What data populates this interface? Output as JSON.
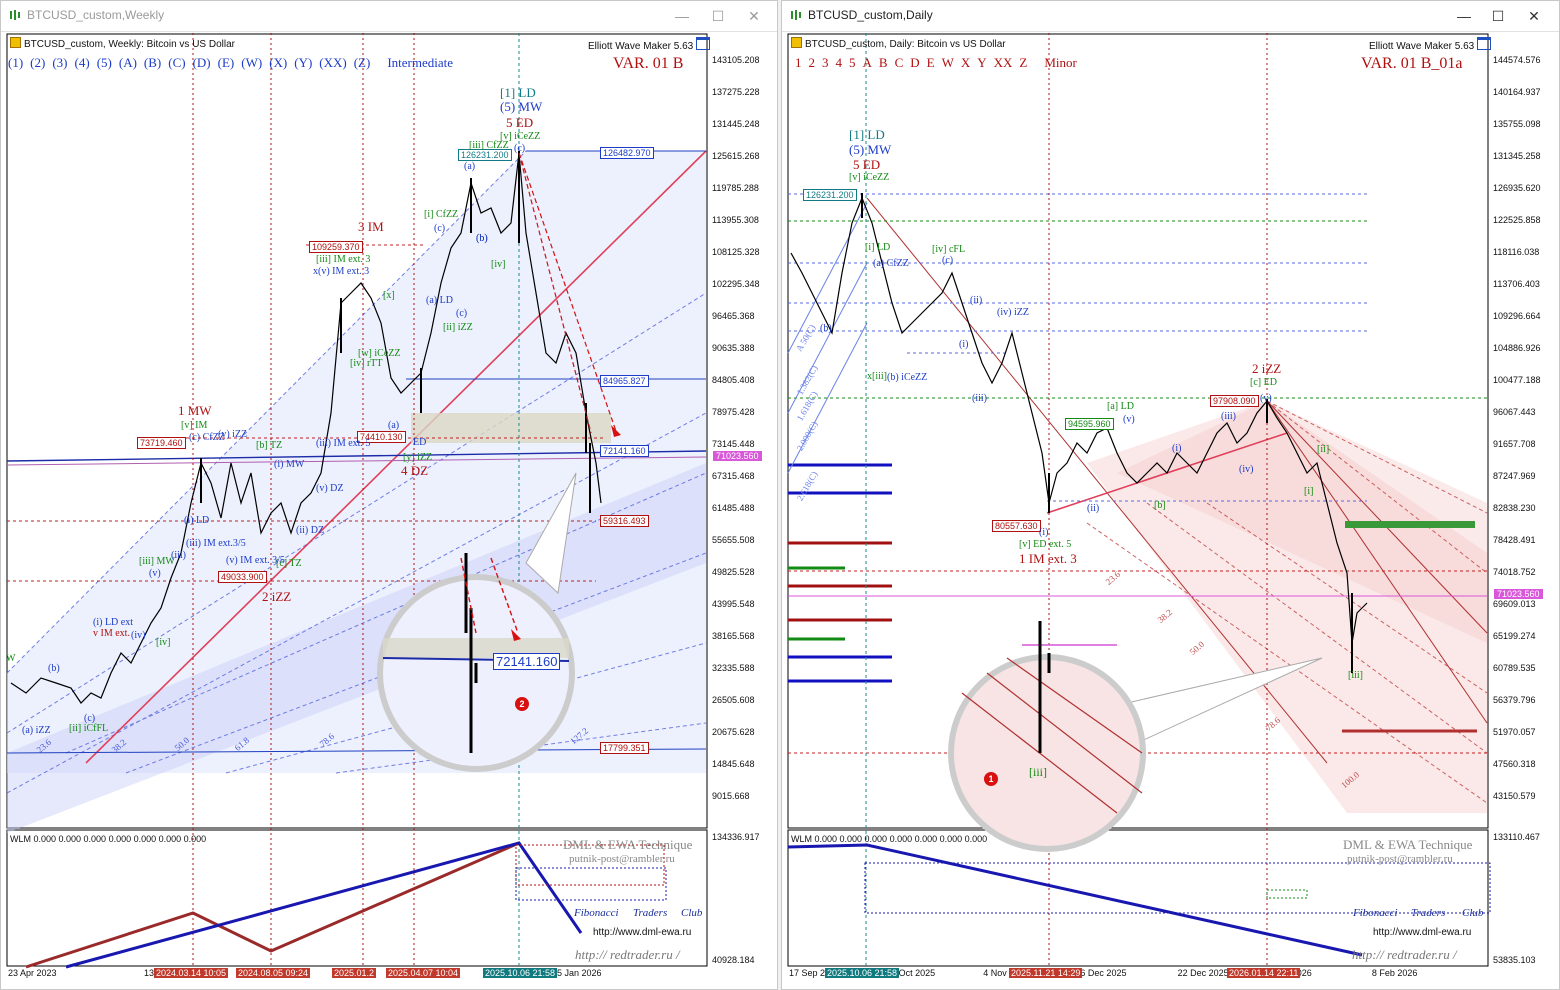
{
  "colors": {
    "red_label": "#b01010",
    "blue_label": "#1c3cc8",
    "green_label": "#138a13",
    "teal_label": "#127a86",
    "time_badge": "#c0392b",
    "time_badge_blue": "#117a7f",
    "price_pink": "#d957d9"
  },
  "weekly": {
    "window_title": "BTCUSD_custom,Weekly",
    "header": "BTCUSD_custom, Weekly:  Bitcoin vs US Dollar",
    "ewm_title": "Elliott Wave Maker 5.63",
    "degrees": [
      "(1)",
      "(2)",
      "(3)",
      "(4)",
      "(5)",
      "(A)",
      "(B)",
      "(C)",
      "(D)",
      "(E)",
      "(W)",
      "(X)",
      "(Y)",
      "(XX)",
      "(Z)"
    ],
    "degree_name": "Intermediate",
    "variant": "VAR. 01 B",
    "price_axis": [
      "143105.208",
      "137275.228",
      "131445.248",
      "125615.268",
      "119785.288",
      "113955.308",
      "108125.328",
      "102295.348",
      "96465.368",
      "90635.388",
      "84805.408",
      "78975.428",
      "73145.448",
      "67315.468",
      "61485.488",
      "55655.508",
      "49825.528",
      "43995.548",
      "38165.568",
      "32335.588",
      "26505.608",
      "20675.628",
      "14845.648",
      "9015.668"
    ],
    "current_price": "71023.560",
    "indicator_axis": [
      "134336.917",
      "40928.184"
    ],
    "time_labels": [
      "23 Apr 2023",
      "13 Aug 2023",
      "3 De",
      "15 Jun",
      "25 Jan 2026"
    ],
    "time_badges": [
      {
        "label": "2024.03.14 10:05",
        "color": "red"
      },
      {
        "label": "2024.08.05 09:24",
        "color": "red"
      },
      {
        "label": "2025.01.2",
        "color": "red"
      },
      {
        "label": "2025.04.07 10:04",
        "color": "red"
      },
      {
        "label": "2025.10.06 21:58",
        "color": "blue"
      }
    ],
    "price_boxes": [
      {
        "value": "126231.200",
        "color": "teal"
      },
      {
        "value": "126482.970",
        "color": "blue"
      },
      {
        "value": "109259.370",
        "color": "red"
      },
      {
        "value": "84965.827",
        "color": "blue"
      },
      {
        "value": "73719.460",
        "color": "red"
      },
      {
        "value": "74410.130",
        "color": "red"
      },
      {
        "value": "72141.160",
        "color": "blue"
      },
      {
        "value": "59316.493",
        "color": "red"
      },
      {
        "value": "49033.900",
        "color": "red"
      },
      {
        "value": "17799.351",
        "color": "red"
      }
    ],
    "wave_labels": [
      {
        "t": "[1] LD",
        "c": "teal"
      },
      {
        "t": "(5) MW",
        "c": "blue"
      },
      {
        "t": "5 ED",
        "c": "red"
      },
      {
        "t": "[v] iCeZZ",
        "c": "green"
      },
      {
        "t": "[iii] CfZZ",
        "c": "green"
      },
      {
        "t": "(a)",
        "c": "blue"
      },
      {
        "t": "(c)",
        "c": "blue"
      },
      {
        "t": "(b)",
        "c": "blue"
      },
      {
        "t": "[iv]",
        "c": "green"
      },
      {
        "t": "[i] CfZZ",
        "c": "green"
      },
      {
        "t": "(c)",
        "c": "blue"
      },
      {
        "t": "(b)",
        "c": "blue"
      },
      {
        "t": "(a) LD",
        "c": "blue"
      },
      {
        "t": "(c)",
        "c": "blue"
      },
      {
        "t": "[ii] iZZ",
        "c": "green"
      },
      {
        "t": "3 IM",
        "c": "red"
      },
      {
        "t": "[iii] IM ext. 3",
        "c": "green"
      },
      {
        "t": "x(v) IM ext. 3",
        "c": "blue"
      },
      {
        "t": "[x]",
        "c": "green"
      },
      {
        "t": "[w] iCeZZ",
        "c": "green"
      },
      {
        "t": "[iv] rTT",
        "c": "green"
      },
      {
        "t": "(a)",
        "c": "blue"
      },
      {
        "t": "4 DZ",
        "c": "red"
      },
      {
        "t": "[y] iZZ",
        "c": "green"
      },
      {
        "t": "ED",
        "c": "blue"
      },
      {
        "t": "1 MW",
        "c": "red"
      },
      {
        "t": "[v] IM",
        "c": "green"
      },
      {
        "t": "(c) CfZZ",
        "c": "blue"
      },
      {
        "t": "(v) iZZ",
        "c": "blue"
      },
      {
        "t": "[b] TZ",
        "c": "green"
      },
      {
        "t": "(iii) IM ext. 5",
        "c": "blue"
      },
      {
        "t": "(i) MW",
        "c": "blue"
      },
      {
        "t": "(v) DZ",
        "c": "blue"
      },
      {
        "t": "(ii) DZ",
        "c": "blue"
      },
      {
        "t": "(i) LD",
        "c": "blue"
      },
      {
        "t": "(iii) IM ext.3/5",
        "c": "blue"
      },
      {
        "t": "(v) IM ext. 3/5",
        "c": "blue"
      },
      {
        "t": "[c] TZ",
        "c": "green"
      },
      {
        "t": "2 iZZ",
        "c": "red"
      },
      {
        "t": "[iii] MW",
        "c": "green"
      },
      {
        "t": "(v)",
        "c": "blue"
      },
      {
        "t": "(iii)",
        "c": "blue"
      },
      {
        "t": "(i) LD ext",
        "c": "blue"
      },
      {
        "t": "v IM ext.",
        "c": "red"
      },
      {
        "t": "(iv)",
        "c": "blue"
      },
      {
        "t": "[iv]",
        "c": "green"
      },
      {
        "t": "(a) iZZ",
        "c": "blue"
      },
      {
        "t": "[ii] iCfFL",
        "c": "green"
      },
      {
        "t": "(b)",
        "c": "blue"
      },
      {
        "t": "(c)",
        "c": "blue"
      },
      {
        "t": "W",
        "c": "green"
      }
    ],
    "fib_levels": [
      "23.6",
      "38.2",
      "50.0",
      "61.8",
      "78.6",
      "127.2"
    ],
    "zoom_price": "72141.160",
    "zoom_badge": "2",
    "wlm": "WLM 0.000 0.000 0.000 0.000 0.000 0.000 0.000",
    "brand": {
      "dml": "DML & EWA Technique",
      "email": "putnik-post@rambler.ru",
      "fib_club": [
        "Fibonacci",
        "Traders",
        "Club"
      ],
      "url": "http://www.dml-ewa.ru",
      "red": "http:// redtrader.ru /"
    }
  },
  "daily": {
    "window_title": "BTCUSD_custom,Daily",
    "header": "BTCUSD_custom, Daily:  Bitcoin vs US Dollar",
    "ewm_title": "Elliott Wave Maker 5.63",
    "degrees": [
      "1",
      "2",
      "3",
      "4",
      "5",
      "A",
      "B",
      "C",
      "D",
      "E",
      "W",
      "X",
      "Y",
      "XX",
      "Z"
    ],
    "degree_name": "Minor",
    "variant": "VAR. 01 B_01a",
    "price_axis": [
      "144574.576",
      "140164.937",
      "135755.098",
      "131345.258",
      "126935.620",
      "122525.858",
      "118116.038",
      "113706.403",
      "109296.664",
      "104886.926",
      "100477.188",
      "96067.443",
      "91657.708",
      "87247.969",
      "82838.230",
      "78428.491",
      "74018.752",
      "69609.013",
      "65199.274",
      "60789.535",
      "56379.796",
      "51970.057",
      "47560.318",
      "43150.579"
    ],
    "current_price": "71023.560",
    "indicator_axis": [
      "133110.467",
      "53835.103"
    ],
    "time_labels": [
      "17 Sep 20",
      "19 Oct 2025",
      "4 Nov 2",
      "6 Dec 2025",
      "22 Dec 2025",
      "Jan 2026",
      "8 Feb 2026"
    ],
    "time_badges": [
      {
        "label": "2025.10.06 21:58",
        "color": "blue"
      },
      {
        "label": "2025.11.21 14:29",
        "color": "red"
      },
      {
        "label": "2026.01.14 22:11",
        "color": "red"
      }
    ],
    "price_boxes": [
      {
        "value": "126231.200",
        "color": "teal"
      },
      {
        "value": "97908.090",
        "color": "red"
      },
      {
        "value": "94595.960",
        "color": "green"
      },
      {
        "value": "80557.630",
        "color": "red"
      }
    ],
    "wave_labels": [
      {
        "t": "[1] LD",
        "c": "teal"
      },
      {
        "t": "(5) MW",
        "c": "blue"
      },
      {
        "t": "5 ED",
        "c": "red"
      },
      {
        "t": "[v] iCeZZ",
        "c": "green"
      },
      {
        "t": "[i] LD",
        "c": "green"
      },
      {
        "t": "(a) CfZZ",
        "c": "blue"
      },
      {
        "t": "(b)",
        "c": "blue"
      },
      {
        "t": "x[iii]",
        "c": "green"
      },
      {
        "t": "(b) iCeZZ",
        "c": "blue"
      },
      {
        "t": "[iv] cFL",
        "c": "green"
      },
      {
        "t": "(c)",
        "c": "blue"
      },
      {
        "t": "(ii)",
        "c": "blue"
      },
      {
        "t": "(iv) iZZ",
        "c": "blue"
      },
      {
        "t": "(i)",
        "c": "blue"
      },
      {
        "t": "(iii)",
        "c": "blue"
      },
      {
        "t": "[a] LD",
        "c": "green"
      },
      {
        "t": "(v)",
        "c": "blue"
      },
      {
        "t": "(ii)",
        "c": "blue"
      },
      {
        "t": "(i)",
        "c": "blue"
      },
      {
        "t": "[b]",
        "c": "green"
      },
      {
        "t": "(iii)",
        "c": "blue"
      },
      {
        "t": "(iv)",
        "c": "blue"
      },
      {
        "t": "(v)",
        "c": "blue"
      },
      {
        "t": "2 iZZ",
        "c": "red"
      },
      {
        "t": "[c] ED",
        "c": "green"
      },
      {
        "t": "[ii]",
        "c": "green"
      },
      {
        "t": "[i]",
        "c": "green"
      },
      {
        "t": "[iii]",
        "c": "green"
      },
      {
        "t": "[v] ED ext. 5",
        "c": "green"
      },
      {
        "t": "1 IM ext. 3",
        "c": "red"
      },
      {
        "t": "(i)",
        "c": "blue"
      }
    ],
    "fib_levels": [
      "23.6",
      "38.2",
      "50.0",
      "78.6",
      "100.0"
    ],
    "left_fibs": [
      "A 50(C)",
      "1.382(C)",
      "1.618(C)",
      "2.000(C)",
      "2.618(C)"
    ],
    "zoom_label": "[iii]",
    "zoom_badge": "1",
    "wlm": "WLM 0.000 0.000 0.000 0.000 0.000 0.000 0.000",
    "brand": {
      "dml": "DML & EWA Technique",
      "email": "putnik-post@rambler.ru",
      "fib_club": [
        "Fibonacci",
        "Traders",
        "Club"
      ],
      "url": "http://www.dml-ewa.ru",
      "red": "http:// redtrader.ru /"
    }
  }
}
